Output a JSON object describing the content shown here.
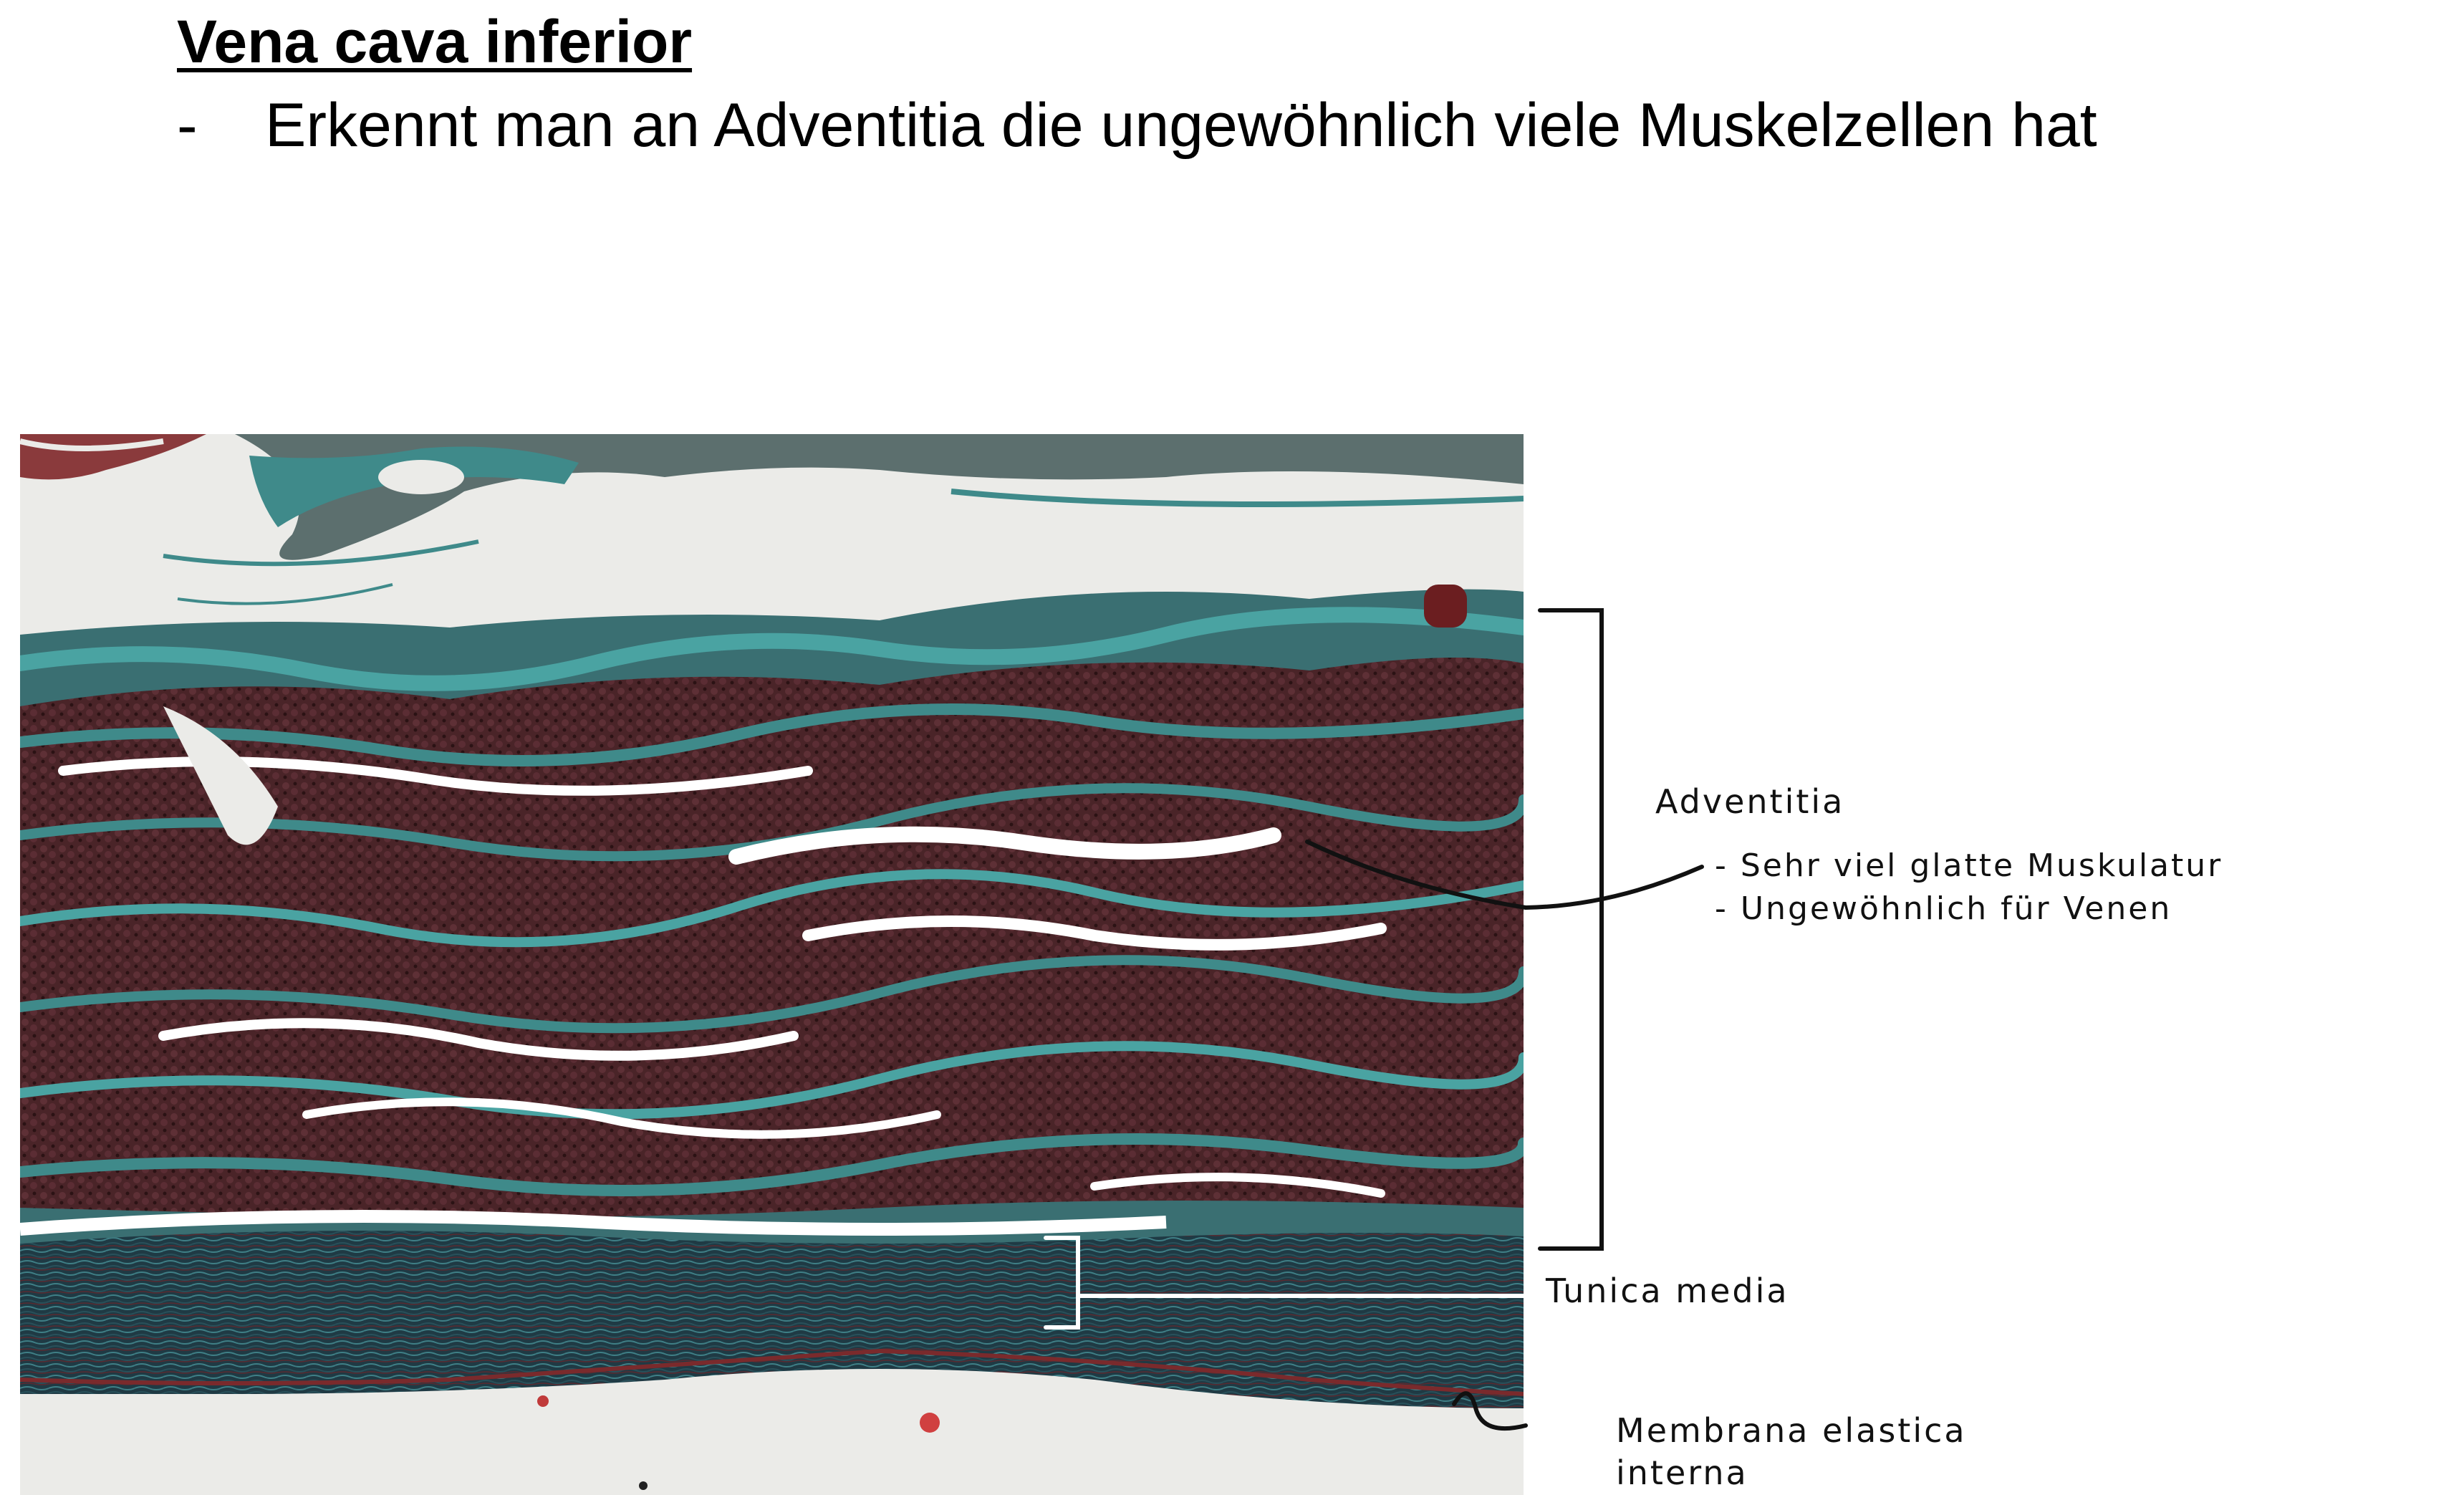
{
  "slide": {
    "title": "Vena cava inferior",
    "bullet_marker": "-",
    "bullet_text": "Erkennt man an Adventitia die ungewöhnlich viele Muskelzellen hat"
  },
  "image": {
    "icon": "histology-micrograph-icon",
    "colors": {
      "background": "#ebebe8",
      "connective_tissue": "#3f8a8a",
      "muscle": "#4a2428",
      "media": "#1f3a44"
    }
  },
  "annotations": {
    "adventitia": {
      "label": "Adventitia",
      "points": [
        "- Sehr viel glatte Muskulatur",
        "- Ungewöhnlich für Venen"
      ]
    },
    "media": {
      "label": "Tunica media"
    },
    "membrane": {
      "line1": "Membrana elastica",
      "line2": "interna"
    }
  }
}
